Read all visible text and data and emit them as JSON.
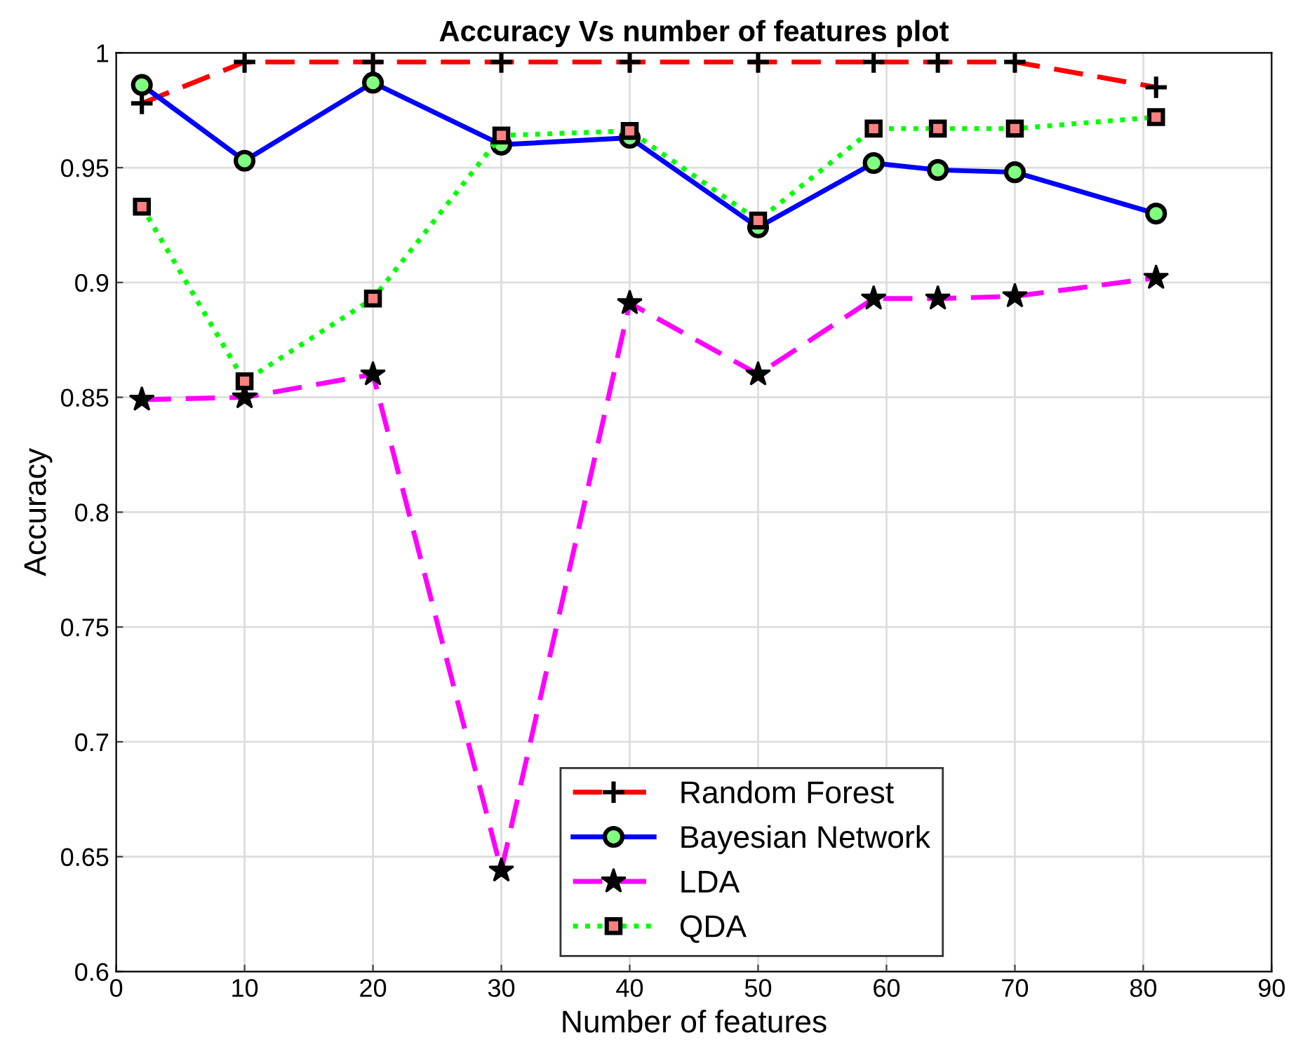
{
  "chart_data": {
    "type": "line",
    "title": "Accuracy Vs number of features plot",
    "xlabel": "Number of features",
    "ylabel": "Accuracy",
    "x": [
      2,
      10,
      20,
      30,
      40,
      50,
      59,
      64,
      70,
      81
    ],
    "series": [
      {
        "name": "Random Forest",
        "color": "#ff0000",
        "line_style": "dashed",
        "marker": "cross",
        "values": [
          0.978,
          0.996,
          0.996,
          0.996,
          0.996,
          0.996,
          0.996,
          0.996,
          0.996,
          0.985
        ]
      },
      {
        "name": "Bayesian Network",
        "color": "#0000ff",
        "line_style": "solid",
        "marker": "circle",
        "values": [
          0.986,
          0.953,
          0.987,
          0.96,
          0.963,
          0.924,
          0.952,
          0.949,
          0.948,
          0.93
        ]
      },
      {
        "name": "LDA",
        "color": "#ff00ff",
        "line_style": "dashed",
        "marker": "star",
        "values": [
          0.849,
          0.85,
          0.86,
          0.644,
          0.891,
          0.86,
          0.893,
          0.893,
          0.894,
          0.902
        ]
      },
      {
        "name": "QDA",
        "color": "#00ff00",
        "line_style": "dotted",
        "marker": "square",
        "values": [
          0.933,
          0.857,
          0.893,
          0.964,
          0.966,
          0.927,
          0.967,
          0.967,
          0.967,
          0.972
        ]
      }
    ],
    "xlim": [
      0,
      90
    ],
    "xticks": [
      0,
      10,
      20,
      30,
      40,
      50,
      60,
      70,
      80,
      90
    ],
    "ylim": [
      0.6,
      1
    ],
    "yticks": [
      0.6,
      0.65,
      0.7,
      0.75,
      0.8,
      0.85,
      0.9,
      0.95,
      1
    ],
    "grid": true,
    "legend": "bottom"
  }
}
